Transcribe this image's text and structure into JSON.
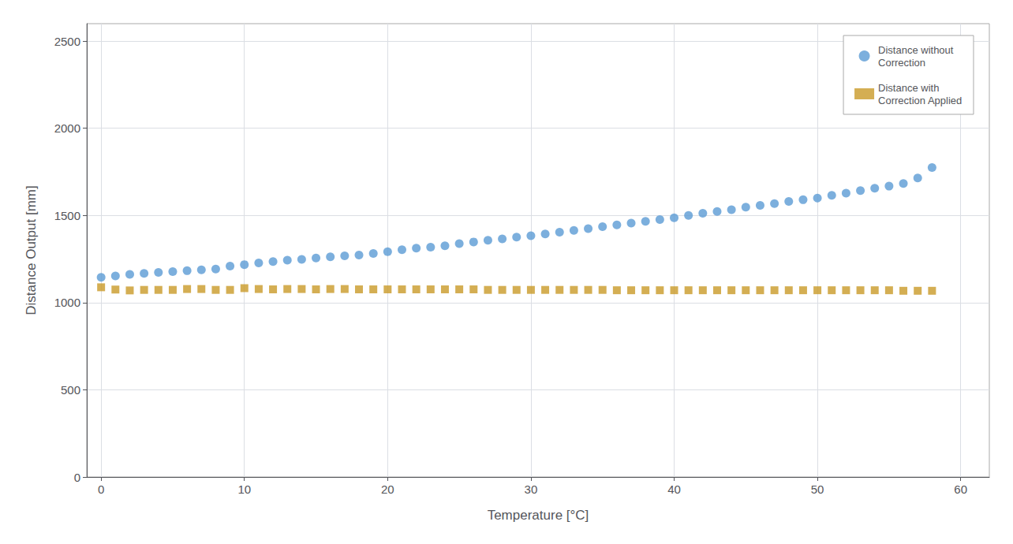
{
  "chart_data": {
    "type": "scatter",
    "xlabel": "Temperature [°C]",
    "ylabel": "Distance Output [mm]",
    "x": [
      0,
      1,
      2,
      3,
      4,
      5,
      6,
      7,
      8,
      9,
      10,
      11,
      12,
      13,
      14,
      15,
      16,
      17,
      18,
      19,
      20,
      21,
      22,
      23,
      24,
      25,
      26,
      27,
      28,
      29,
      30,
      31,
      32,
      33,
      34,
      35,
      36,
      37,
      38,
      39,
      40,
      41,
      42,
      43,
      44,
      45,
      46,
      47,
      48,
      49,
      50,
      51,
      52,
      53,
      54,
      55,
      56,
      57,
      58
    ],
    "series": [
      {
        "name": "Distance without\nCorrection",
        "color": "#5b9bd5",
        "marker": "circle",
        "values": [
          1145,
          1153,
          1162,
          1168,
          1173,
          1178,
          1183,
          1188,
          1193,
          1210,
          1218,
          1228,
          1236,
          1243,
          1248,
          1256,
          1263,
          1268,
          1273,
          1282,
          1292,
          1303,
          1312,
          1318,
          1326,
          1338,
          1348,
          1358,
          1366,
          1376,
          1384,
          1394,
          1404,
          1414,
          1424,
          1436,
          1446,
          1456,
          1466,
          1476,
          1487,
          1500,
          1513,
          1523,
          1533,
          1548,
          1558,
          1568,
          1580,
          1590,
          1600,
          1615,
          1628,
          1643,
          1656,
          1668,
          1683,
          1715,
          1775
        ]
      },
      {
        "name": "Distance with\nCorrection Applied",
        "color": "#c99a28",
        "marker": "square",
        "values": [
          1088,
          1075,
          1070,
          1073,
          1073,
          1073,
          1078,
          1078,
          1073,
          1073,
          1083,
          1078,
          1076,
          1078,
          1078,
          1076,
          1078,
          1078,
          1076,
          1076,
          1076,
          1076,
          1076,
          1076,
          1076,
          1076,
          1076,
          1073,
          1073,
          1073,
          1073,
          1073,
          1073,
          1073,
          1073,
          1073,
          1071,
          1071,
          1071,
          1071,
          1071,
          1071,
          1071,
          1071,
          1071,
          1071,
          1071,
          1071,
          1071,
          1071,
          1071,
          1071,
          1071,
          1071,
          1071,
          1071,
          1068,
          1068,
          1068
        ]
      }
    ],
    "xlim": [
      -1,
      62
    ],
    "ylim": [
      0,
      2600
    ],
    "xticks": [
      0,
      10,
      20,
      30,
      40,
      50,
      60
    ],
    "yticks": [
      0,
      500,
      1000,
      1500,
      2000,
      2500
    ],
    "grid": true,
    "legend": "upper right"
  }
}
